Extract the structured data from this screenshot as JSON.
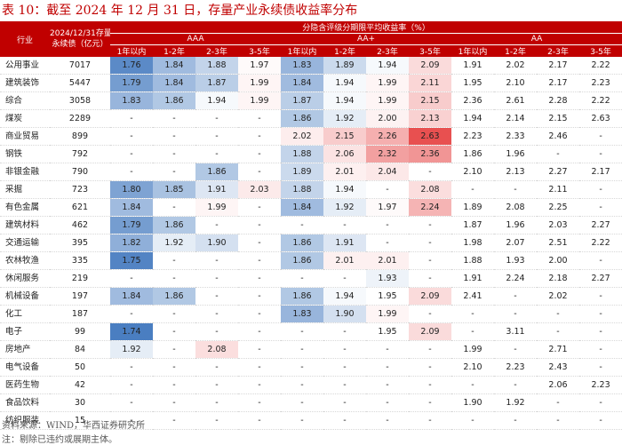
{
  "title": "表 10：截至 2024 年 12 月 31 日，存量产业永续债收益率分布",
  "header": {
    "industry": "行业",
    "balance": [
      "2024/12/31存量",
      "永续债（亿元）"
    ],
    "span_title": "分隐含评级分期限平均收益率（%）",
    "groups": [
      "AAA",
      "AA+",
      "AA"
    ],
    "tenors": [
      "1年以内",
      "1-2年",
      "2-3年",
      "3-5年",
      "1年以内",
      "1-2年",
      "2-3年",
      "3-5年",
      "1年以内",
      "1-2年",
      "2-3年",
      "3-5年"
    ]
  },
  "rows": [
    {
      "name": "公用事业",
      "balance": "7017",
      "v": [
        "1.76",
        "1.84",
        "1.88",
        "1.97",
        "1.83",
        "1.89",
        "1.94",
        "2.09",
        "1.91",
        "2.02",
        "2.17",
        "2.22"
      ]
    },
    {
      "name": "建筑装饰",
      "balance": "5447",
      "v": [
        "1.79",
        "1.84",
        "1.87",
        "1.99",
        "1.84",
        "1.94",
        "1.99",
        "2.11",
        "1.95",
        "2.10",
        "2.17",
        "2.23"
      ]
    },
    {
      "name": "综合",
      "balance": "3058",
      "v": [
        "1.83",
        "1.86",
        "1.94",
        "1.99",
        "1.87",
        "1.94",
        "1.99",
        "2.15",
        "2.36",
        "2.61",
        "2.28",
        "2.22"
      ]
    },
    {
      "name": "煤炭",
      "balance": "2289",
      "v": [
        "-",
        "-",
        "-",
        "-",
        "1.86",
        "1.92",
        "2.00",
        "2.13",
        "1.94",
        "2.14",
        "2.15",
        "2.63"
      ]
    },
    {
      "name": "商业贸易",
      "balance": "899",
      "v": [
        "-",
        "-",
        "-",
        "-",
        "2.02",
        "2.15",
        "2.26",
        "2.63",
        "2.23",
        "2.33",
        "2.46",
        "-"
      ]
    },
    {
      "name": "钢铁",
      "balance": "792",
      "v": [
        "-",
        "-",
        "-",
        "-",
        "1.88",
        "2.06",
        "2.32",
        "2.36",
        "1.86",
        "1.96",
        "-",
        "-"
      ]
    },
    {
      "name": "非银金融",
      "balance": "790",
      "v": [
        "-",
        "-",
        "1.86",
        "-",
        "1.89",
        "2.01",
        "2.04",
        "-",
        "2.10",
        "2.13",
        "2.27",
        "2.17"
      ]
    },
    {
      "name": "采掘",
      "balance": "723",
      "v": [
        "1.80",
        "1.85",
        "1.91",
        "2.03",
        "1.88",
        "1.94",
        "-",
        "2.08",
        "-",
        "-",
        "2.11",
        "-"
      ]
    },
    {
      "name": "有色金属",
      "balance": "621",
      "v": [
        "1.84",
        "-",
        "1.99",
        "-",
        "1.84",
        "1.92",
        "1.97",
        "2.24",
        "1.89",
        "2.08",
        "2.25",
        "-"
      ]
    },
    {
      "name": "建筑材料",
      "balance": "462",
      "v": [
        "1.79",
        "1.86",
        "-",
        "-",
        "-",
        "-",
        "-",
        "-",
        "1.87",
        "1.96",
        "2.03",
        "2.27"
      ]
    },
    {
      "name": "交通运输",
      "balance": "395",
      "v": [
        "1.82",
        "1.92",
        "1.90",
        "-",
        "1.86",
        "1.91",
        "-",
        "-",
        "1.98",
        "2.07",
        "2.51",
        "2.22"
      ]
    },
    {
      "name": "农林牧渔",
      "balance": "335",
      "v": [
        "1.75",
        "-",
        "-",
        "-",
        "1.86",
        "2.01",
        "2.01",
        "-",
        "1.88",
        "1.93",
        "2.00",
        "-"
      ]
    },
    {
      "name": "休闲服务",
      "balance": "219",
      "v": [
        "-",
        "-",
        "-",
        "-",
        "-",
        "-",
        "1.93",
        "-",
        "1.91",
        "2.24",
        "2.18",
        "2.27"
      ]
    },
    {
      "name": "机械设备",
      "balance": "197",
      "v": [
        "1.84",
        "1.86",
        "-",
        "-",
        "1.86",
        "1.94",
        "1.95",
        "2.09",
        "2.41",
        "-",
        "2.02",
        "-"
      ]
    },
    {
      "name": "化工",
      "balance": "187",
      "v": [
        "-",
        "-",
        "-",
        "-",
        "1.83",
        "1.90",
        "1.99",
        "-",
        "-",
        "-",
        "-",
        "-"
      ]
    },
    {
      "name": "电子",
      "balance": "99",
      "v": [
        "1.74",
        "-",
        "-",
        "-",
        "-",
        "-",
        "1.95",
        "2.09",
        "-",
        "3.11",
        "-",
        "-"
      ]
    },
    {
      "name": "房地产",
      "balance": "84",
      "v": [
        "1.92",
        "-",
        "2.08",
        "-",
        "-",
        "-",
        "-",
        "-",
        "1.99",
        "-",
        "2.71",
        "-"
      ]
    },
    {
      "name": "电气设备",
      "balance": "50",
      "v": [
        "-",
        "-",
        "-",
        "-",
        "-",
        "-",
        "-",
        "-",
        "2.10",
        "2.23",
        "2.43",
        "-"
      ]
    },
    {
      "name": "医药生物",
      "balance": "42",
      "v": [
        "-",
        "-",
        "-",
        "-",
        "-",
        "-",
        "-",
        "-",
        "-",
        "-",
        "2.06",
        "2.23"
      ]
    },
    {
      "name": "食品饮料",
      "balance": "30",
      "v": [
        "-",
        "-",
        "-",
        "-",
        "-",
        "-",
        "-",
        "-",
        "1.90",
        "1.92",
        "-",
        "-"
      ]
    },
    {
      "name": "纺织服装",
      "balance": "15",
      "v": [
        "-",
        "-",
        "-",
        "-",
        "-",
        "-",
        "-",
        "-",
        "-",
        "-",
        "-",
        "-"
      ]
    }
  ],
  "source": "资料来源：WIND，华西证券研究所",
  "footnote": "注：剔除已违约或展期主体。"
}
